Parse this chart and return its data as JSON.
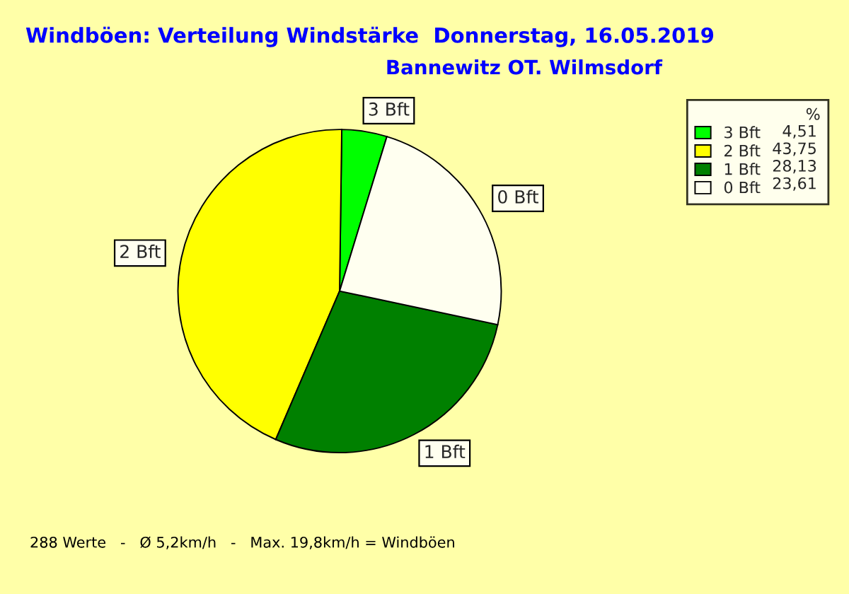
{
  "chart_data": {
    "type": "pie",
    "title": "Windböen: Verteilung Windstärke  Donnerstag, 16.05.2019",
    "subtitle": "Bannewitz OT. Wilmsdorf",
    "categories": [
      "3 Bft",
      "2 Bft",
      "1 Bft",
      "0 Bft"
    ],
    "values": [
      4.51,
      43.75,
      28.13,
      23.61
    ],
    "value_labels": [
      "4,51",
      "43,75",
      "28,13",
      "23,61"
    ],
    "colors": [
      "#00ff00",
      "#ffff00",
      "#008000",
      "#fffff0"
    ],
    "legend_title": "%",
    "legend": "top right",
    "annotations": [
      "288 Werte   -   Ø 5,2km/h   -   Max. 19,8km/h = Windböen"
    ]
  }
}
